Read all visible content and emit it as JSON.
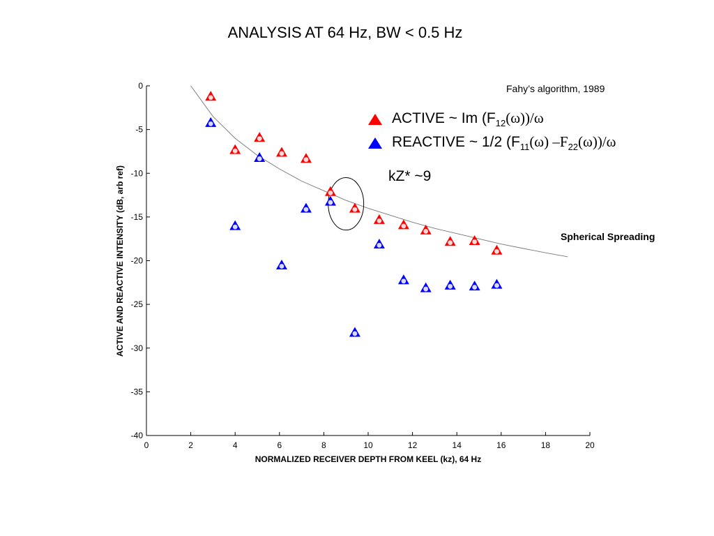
{
  "chart_data": {
    "type": "scatter",
    "title": "ANALYSIS AT 64 Hz, BW < 0.5 Hz",
    "xlabel": "NORMALIZED RECEIVER DEPTH FROM KEEL (kz), 64 Hz",
    "ylabel": "ACTIVE AND REACTIVE INTENSITY (dB, arb ref)",
    "xlim": [
      0,
      20
    ],
    "ylim": [
      -40,
      0
    ],
    "x_ticks": [
      "0",
      "2",
      "4",
      "6",
      "8",
      "10",
      "12",
      "14",
      "16",
      "18",
      "20"
    ],
    "y_ticks": [
      "0",
      "-5",
      "-10",
      "-15",
      "-20",
      "-25",
      "-30",
      "-35",
      "-40"
    ],
    "grid": false,
    "legend_position": "top-right",
    "series": [
      {
        "name": "ACTIVE ~ Im (F12(ω))/ω",
        "color": "#ff0000",
        "marker": "triangle",
        "x": [
          2.9,
          4.0,
          5.1,
          6.1,
          7.2,
          8.3,
          9.4,
          10.5,
          11.6,
          12.6,
          13.7,
          14.8,
          15.8
        ],
        "y": [
          -1.3,
          -7.4,
          -6.0,
          -7.7,
          -8.4,
          -12.2,
          -14.1,
          -15.4,
          -16.0,
          -16.6,
          -17.9,
          -17.8,
          -18.9
        ]
      },
      {
        "name": "REACTIVE ~ 1/2 (F11(ω) –F22(ω))/ω",
        "color": "#0000ff",
        "marker": "triangle",
        "x": [
          2.9,
          4.0,
          5.1,
          6.1,
          7.2,
          8.3,
          9.4,
          10.5,
          11.6,
          12.6,
          13.7,
          14.8,
          15.8
        ],
        "y": [
          -4.3,
          -16.1,
          -8.3,
          -20.6,
          -14.1,
          -13.3,
          -28.3,
          -18.2,
          -22.3,
          -23.2,
          -22.9,
          -23.0,
          -22.8
        ]
      }
    ],
    "reference_curve": {
      "name": "Spherical Spreading",
      "x": [
        2.0,
        3.0,
        4.0,
        5.0,
        6.0,
        7.0,
        8.0,
        9.0,
        10.0,
        11.0,
        12.0,
        13.0,
        14.0,
        15.0,
        16.0,
        17.0,
        18.0,
        19.0
      ],
      "y": [
        0.0,
        -3.5,
        -6.0,
        -7.95,
        -9.5,
        -10.9,
        -12.0,
        -13.1,
        -14.0,
        -14.8,
        -15.6,
        -16.3,
        -16.9,
        -17.5,
        -18.1,
        -18.6,
        -19.1,
        -19.55
      ]
    },
    "annotations": {
      "citation": "Fahy’s algorithm, 1989",
      "kz_note": "kZ* ~9",
      "curve_label": "Spherical Spreading",
      "ellipse": {
        "cx": 9.0,
        "cy": -13.5,
        "rx": 0.8,
        "ry": 3.0
      }
    }
  },
  "legend": {
    "active_prefix": "ACTIVE ~ Im (F",
    "active_sub": "12",
    "active_suffix": "(ω))/ω",
    "reactive_prefix": "REACTIVE ~ 1/2 (F",
    "reactive_sub1": "11",
    "reactive_mid": "(ω) –F",
    "reactive_sub2": "22",
    "reactive_suffix": "(ω))/ω"
  }
}
